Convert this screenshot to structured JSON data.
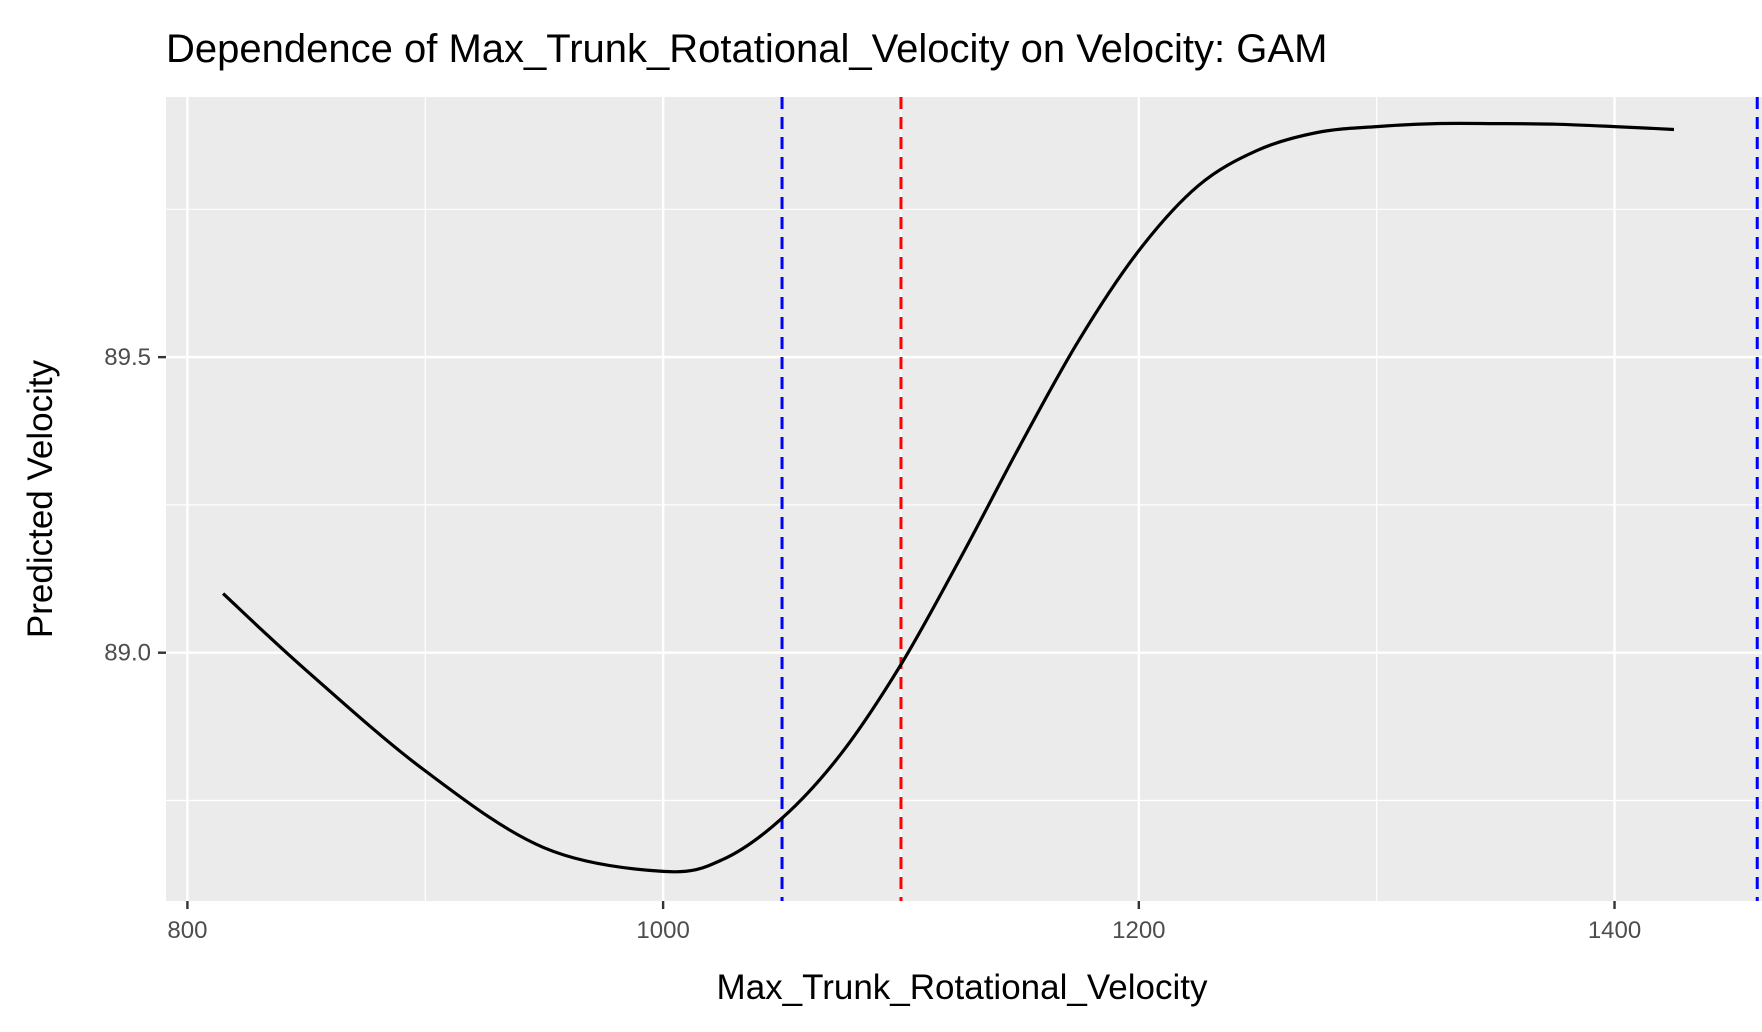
{
  "chart_data": {
    "type": "line",
    "title": "Dependence of Max_Trunk_Rotational_Velocity on Velocity: GAM",
    "xlabel": "Max_Trunk_Rotational_Velocity",
    "ylabel": "Predicted Velocity",
    "xlim": [
      791,
      1462
    ],
    "ylim": [
      88.58,
      89.94
    ],
    "x_ticks": [
      800,
      1000,
      1200,
      1400
    ],
    "x_tick_labels": [
      "800",
      "1000",
      "1200",
      "1400"
    ],
    "y_ticks": [
      89.0,
      89.5
    ],
    "y_tick_labels": [
      "89.0",
      "89.5"
    ],
    "grid": true,
    "legend": "none",
    "panel_background": "#ebebeb",
    "series": [
      {
        "color": "#000000",
        "x": [
          815,
          850,
          900,
          950,
          1000,
          1025,
          1050,
          1075,
          1100,
          1125,
          1150,
          1175,
          1200,
          1225,
          1250,
          1275,
          1300,
          1325,
          1350,
          1375,
          1400,
          1425
        ],
        "y": [
          89.1,
          88.97,
          88.8,
          88.67,
          88.63,
          88.65,
          88.72,
          88.83,
          88.98,
          89.16,
          89.35,
          89.53,
          89.68,
          89.79,
          89.85,
          89.88,
          89.89,
          89.895,
          89.895,
          89.894,
          89.89,
          89.885
        ]
      }
    ],
    "reference_lines": [
      {
        "x": 1050,
        "color": "#0000ff",
        "style": "dashed"
      },
      {
        "x": 1100,
        "color": "#ff0000",
        "style": "dashed"
      },
      {
        "x": 1460,
        "color": "#0000ff",
        "style": "dashed"
      }
    ]
  }
}
